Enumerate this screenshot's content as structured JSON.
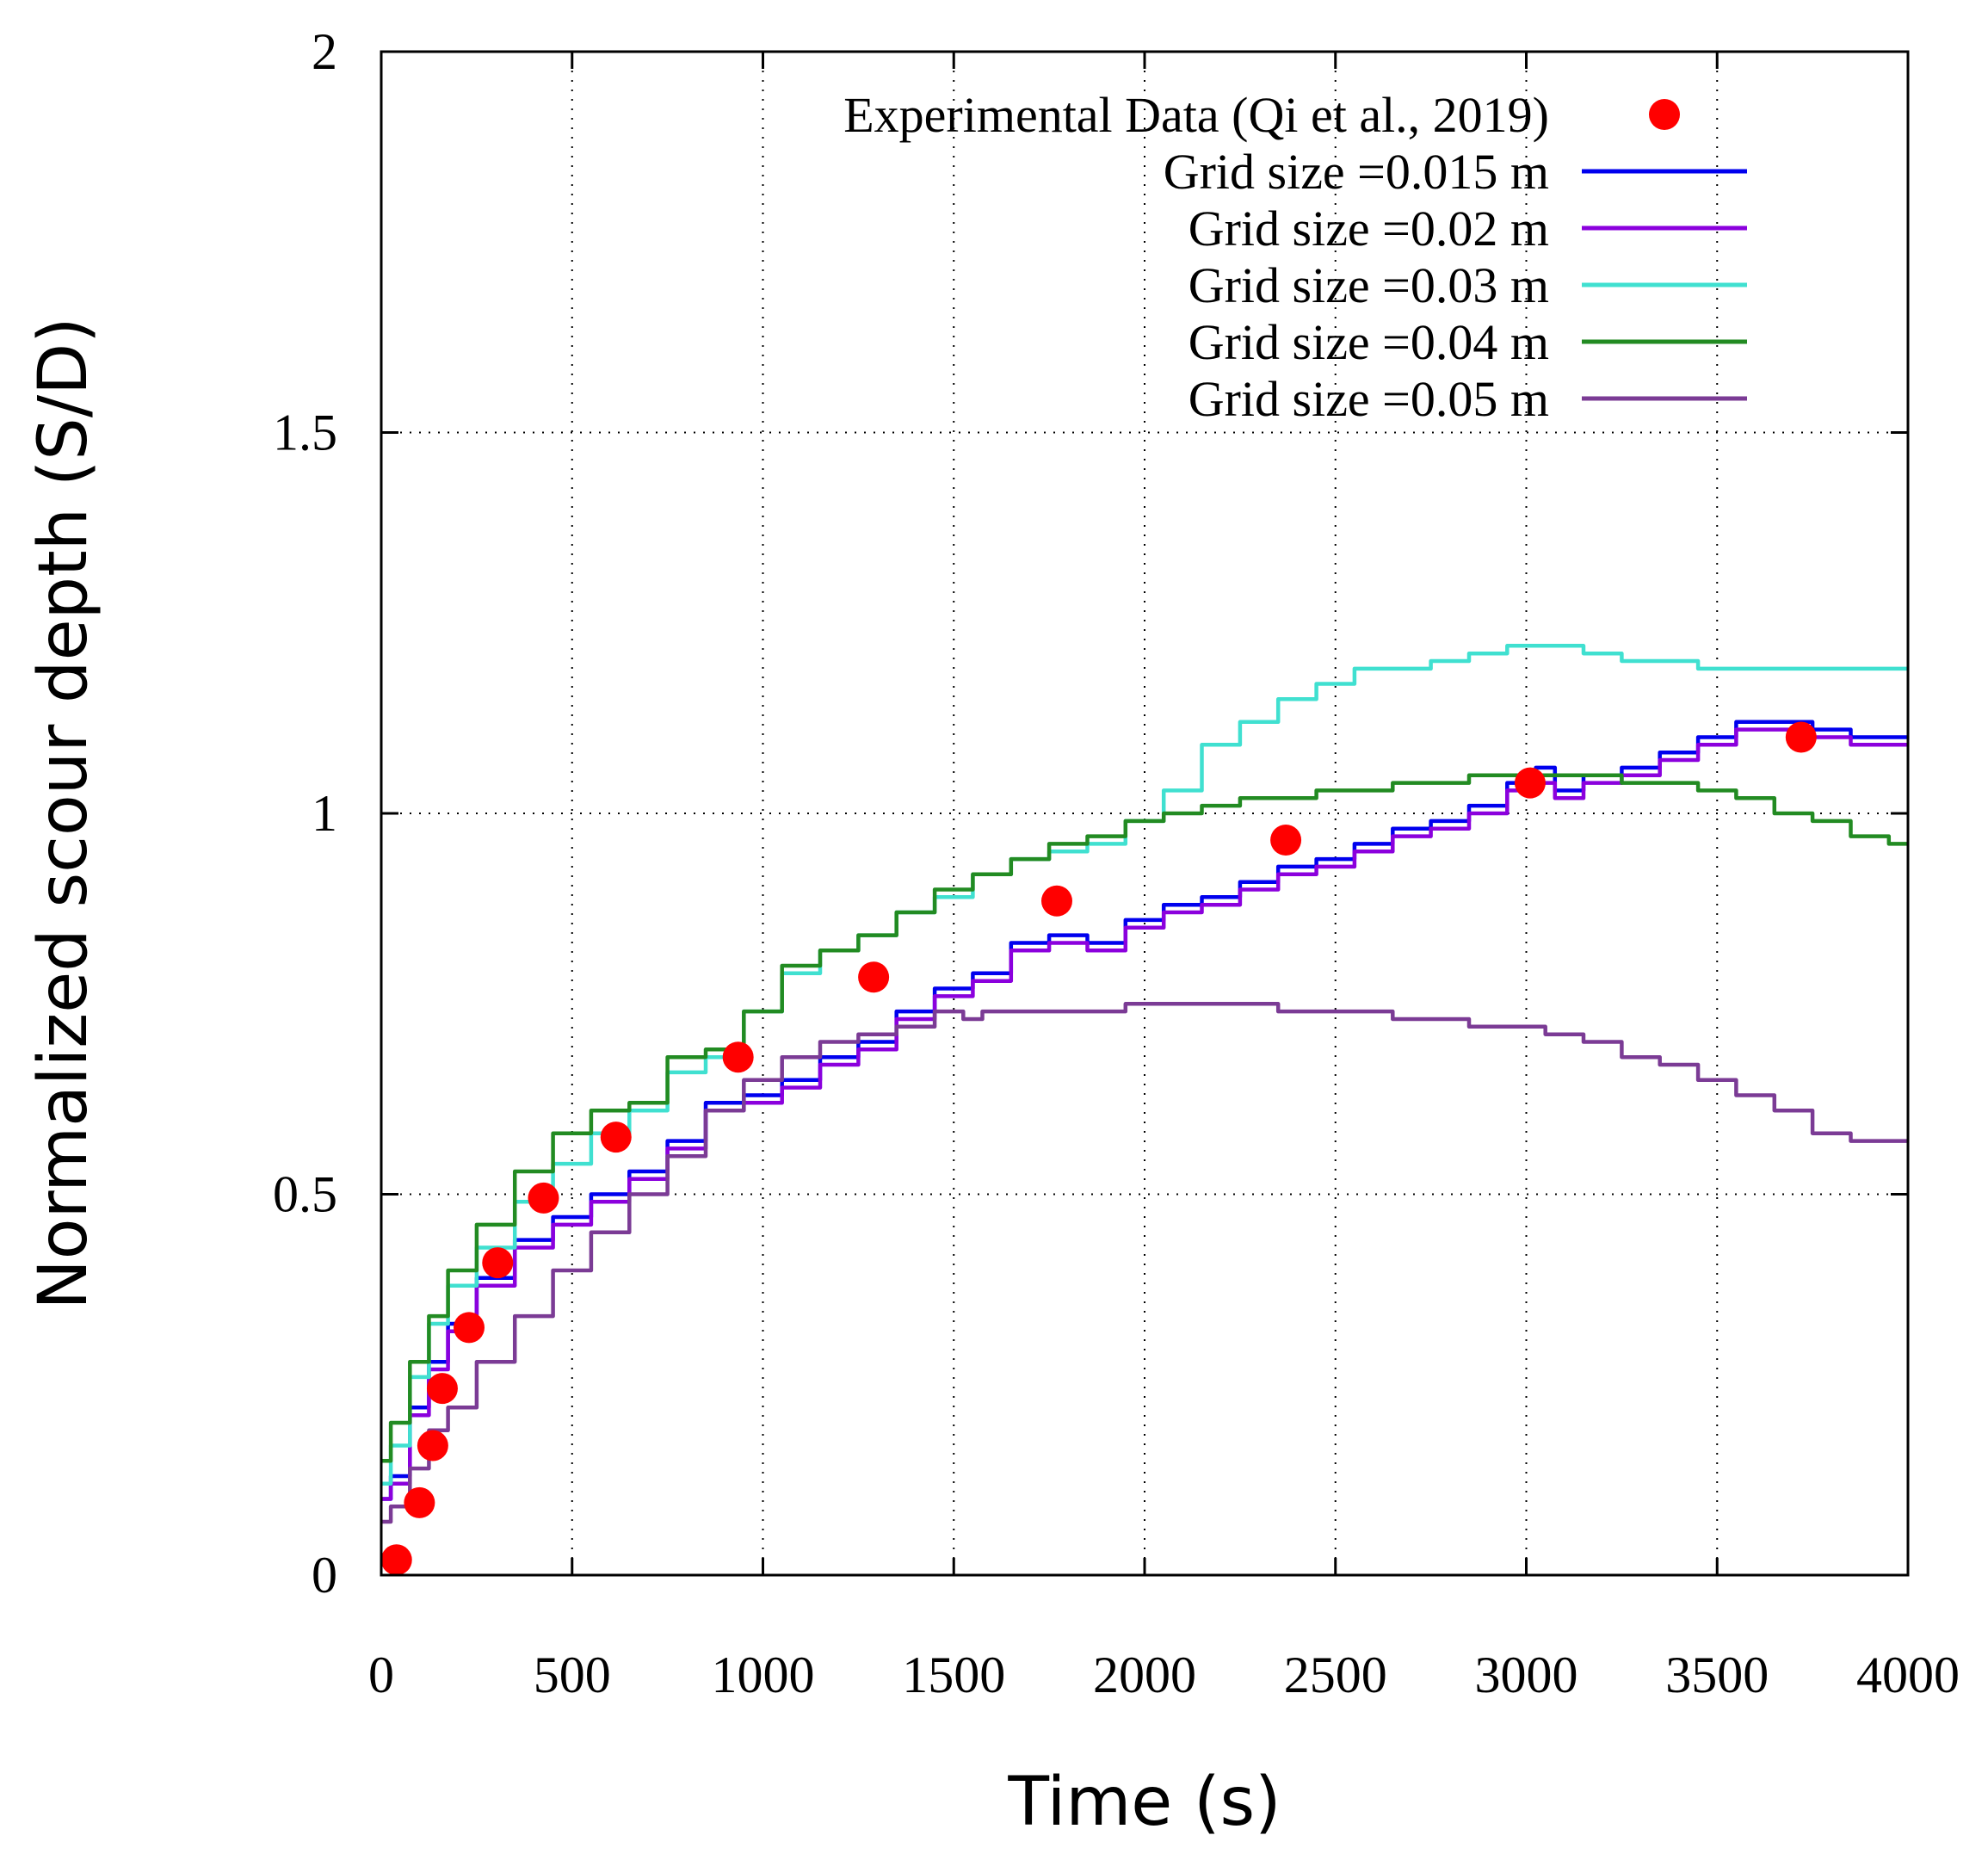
{
  "chart_data": {
    "type": "line",
    "title": "",
    "xlabel": "Time (s)",
    "ylabel": "Normalized scour depth (S/D)",
    "xlim": [
      0,
      4000
    ],
    "ylim": [
      0,
      2
    ],
    "xticks": [
      0,
      500,
      1000,
      1500,
      2000,
      2500,
      3000,
      3500,
      4000
    ],
    "xtick_labels": [
      "0",
      "500",
      "1000",
      "1500",
      "2000",
      "2500",
      "3000",
      "3500",
      "4000"
    ],
    "yticks": [
      0,
      0.5,
      1,
      1.5,
      2
    ],
    "ytick_labels": [
      "0",
      "0.5",
      "1",
      "1.5",
      "2"
    ],
    "grid": true,
    "legend_position": "top-right",
    "scatter": {
      "name": "Experimental Data (Qi et al., 2019)",
      "color": "#ff0000",
      "x": [
        40,
        100,
        135,
        160,
        230,
        305,
        425,
        615,
        935,
        1290,
        1770,
        2370,
        3010,
        3720
      ],
      "y": [
        0.02,
        0.095,
        0.17,
        0.245,
        0.325,
        0.41,
        0.495,
        0.575,
        0.68,
        0.785,
        0.885,
        0.965,
        1.04,
        1.1
      ]
    },
    "series": [
      {
        "name": "Grid size =0.015 m",
        "color": "#0000ee",
        "x": [
          0,
          50,
          100,
          150,
          200,
          300,
          400,
          500,
          600,
          700,
          800,
          900,
          1000,
          1100,
          1200,
          1300,
          1400,
          1500,
          1600,
          1700,
          1800,
          1900,
          2000,
          2100,
          2200,
          2300,
          2400,
          2500,
          2600,
          2700,
          2800,
          2900,
          3000,
          3050,
          3100,
          3200,
          3300,
          3400,
          3500,
          3600,
          3700,
          3800,
          3900,
          4000
        ],
        "y": [
          0.1,
          0.13,
          0.22,
          0.28,
          0.33,
          0.39,
          0.44,
          0.47,
          0.5,
          0.53,
          0.57,
          0.62,
          0.63,
          0.65,
          0.68,
          0.7,
          0.74,
          0.77,
          0.79,
          0.83,
          0.84,
          0.83,
          0.86,
          0.88,
          0.89,
          0.91,
          0.93,
          0.94,
          0.96,
          0.98,
          0.99,
          1.01,
          1.04,
          1.06,
          1.03,
          1.05,
          1.06,
          1.08,
          1.1,
          1.12,
          1.12,
          1.11,
          1.1,
          1.1
        ]
      },
      {
        "name": "Grid size =0.02 m",
        "color": "#8b00dd",
        "x": [
          0,
          50,
          100,
          150,
          200,
          300,
          400,
          500,
          600,
          700,
          800,
          900,
          1000,
          1100,
          1200,
          1300,
          1400,
          1500,
          1600,
          1700,
          1800,
          1900,
          2000,
          2100,
          2200,
          2300,
          2400,
          2500,
          2600,
          2700,
          2800,
          2900,
          3000,
          3050,
          3100,
          3200,
          3300,
          3400,
          3500,
          3600,
          3700,
          3800,
          3900,
          4000
        ],
        "y": [
          0.1,
          0.12,
          0.21,
          0.27,
          0.32,
          0.38,
          0.43,
          0.46,
          0.49,
          0.52,
          0.56,
          0.61,
          0.62,
          0.64,
          0.67,
          0.69,
          0.73,
          0.76,
          0.78,
          0.82,
          0.83,
          0.82,
          0.85,
          0.87,
          0.88,
          0.9,
          0.92,
          0.93,
          0.95,
          0.97,
          0.98,
          1.0,
          1.03,
          1.04,
          1.02,
          1.04,
          1.05,
          1.07,
          1.09,
          1.11,
          1.11,
          1.1,
          1.09,
          1.09
        ]
      },
      {
        "name": "Grid size =0.03 m",
        "color": "#40e0d0",
        "x": [
          0,
          50,
          100,
          150,
          200,
          300,
          400,
          500,
          600,
          700,
          800,
          900,
          1000,
          1100,
          1200,
          1300,
          1400,
          1500,
          1600,
          1700,
          1800,
          1900,
          2000,
          2100,
          2200,
          2300,
          2400,
          2500,
          2600,
          2700,
          2800,
          2900,
          3000,
          3100,
          3200,
          3300,
          3400,
          3500,
          3600,
          3700,
          3800,
          3900,
          4000
        ],
        "y": [
          0.12,
          0.17,
          0.26,
          0.33,
          0.38,
          0.43,
          0.49,
          0.54,
          0.58,
          0.61,
          0.66,
          0.68,
          0.74,
          0.79,
          0.82,
          0.84,
          0.87,
          0.89,
          0.92,
          0.94,
          0.95,
          0.96,
          0.99,
          1.03,
          1.09,
          1.12,
          1.15,
          1.17,
          1.19,
          1.19,
          1.2,
          1.21,
          1.22,
          1.22,
          1.21,
          1.2,
          1.2,
          1.19,
          1.19,
          1.19,
          1.19,
          1.19,
          1.19
        ]
      },
      {
        "name": "Grid size =0.04 m",
        "color": "#228b22",
        "x": [
          0,
          50,
          100,
          150,
          200,
          300,
          400,
          500,
          600,
          700,
          800,
          900,
          1000,
          1100,
          1200,
          1300,
          1400,
          1500,
          1600,
          1700,
          1800,
          1900,
          2000,
          2100,
          2200,
          2300,
          2400,
          2500,
          2600,
          2700,
          2800,
          2900,
          3000,
          3100,
          3200,
          3300,
          3400,
          3500,
          3600,
          3700,
          3800,
          3900,
          4000
        ],
        "y": [
          0.15,
          0.2,
          0.28,
          0.34,
          0.4,
          0.46,
          0.53,
          0.58,
          0.61,
          0.62,
          0.68,
          0.69,
          0.74,
          0.8,
          0.82,
          0.84,
          0.87,
          0.9,
          0.92,
          0.94,
          0.96,
          0.97,
          0.99,
          1.0,
          1.01,
          1.02,
          1.02,
          1.03,
          1.03,
          1.04,
          1.04,
          1.05,
          1.05,
          1.05,
          1.05,
          1.04,
          1.04,
          1.03,
          1.02,
          1.0,
          0.99,
          0.97,
          0.96
        ]
      },
      {
        "name": "Grid size =0.05 m",
        "color": "#7b3b95",
        "x": [
          0,
          50,
          100,
          150,
          200,
          300,
          400,
          500,
          600,
          700,
          800,
          900,
          1000,
          1100,
          1200,
          1300,
          1400,
          1500,
          1550,
          1600,
          1700,
          1800,
          1900,
          2000,
          2100,
          2200,
          2300,
          2400,
          2500,
          2600,
          2700,
          2800,
          2900,
          3000,
          3100,
          3200,
          3300,
          3400,
          3500,
          3600,
          3700,
          3800,
          3900,
          4000
        ],
        "y": [
          0.07,
          0.09,
          0.14,
          0.19,
          0.22,
          0.28,
          0.34,
          0.4,
          0.45,
          0.5,
          0.55,
          0.61,
          0.65,
          0.68,
          0.7,
          0.71,
          0.72,
          0.74,
          0.73,
          0.74,
          0.74,
          0.74,
          0.74,
          0.75,
          0.75,
          0.75,
          0.75,
          0.74,
          0.74,
          0.74,
          0.73,
          0.73,
          0.72,
          0.72,
          0.71,
          0.7,
          0.68,
          0.67,
          0.65,
          0.63,
          0.61,
          0.58,
          0.57,
          0.57
        ]
      }
    ]
  }
}
